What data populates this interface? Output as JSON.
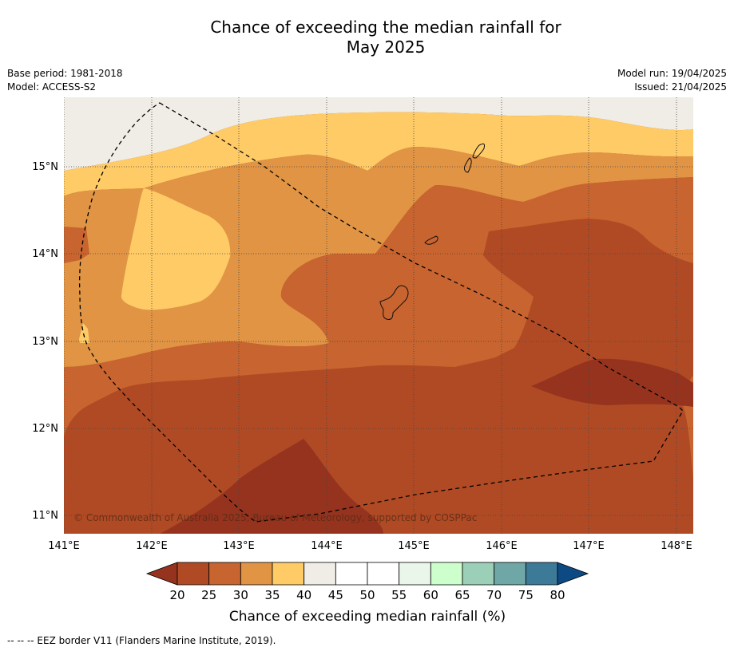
{
  "title": {
    "line1": "Chance of exceeding the median rainfall for",
    "line2": "May 2025"
  },
  "meta": {
    "base_period": "Base period: 1981-2018",
    "model": "Model: ACCESS-S2",
    "model_run": "Model run: 19/04/2025",
    "issued": "Issued: 21/04/2025"
  },
  "map": {
    "lon_labels": [
      "141°E",
      "142°E",
      "143°E",
      "144°E",
      "145°E",
      "146°E",
      "147°E",
      "148°E"
    ],
    "lat_labels": [
      "15°N",
      "14°N",
      "13°N",
      "12°N",
      "11°N"
    ],
    "copyright": "© Commonwealth of Australia 2025, Bureau of Meteorology, supported by COSPPac",
    "lon_range": [
      141.0,
      148.2
    ],
    "lat_range": [
      10.8,
      15.8
    ],
    "fill_colors": {
      "20-25": "#b04a24",
      "25-30": "#c8642f",
      "30-35": "#e09444",
      "35-40": "#fecb66",
      "40-45": "#f0ece6",
      "below-20": "#96331e"
    }
  },
  "legend": {
    "title": "Chance of exceeding median rainfall (%)",
    "ticks": [
      "20",
      "25",
      "30",
      "35",
      "40",
      "45",
      "50",
      "55",
      "60",
      "65",
      "70",
      "75",
      "80"
    ],
    "colors": [
      "#b04a24",
      "#c8642f",
      "#e09444",
      "#fecb66",
      "#f0ece6",
      "#ffffff",
      "#ffffff",
      "#eaf6ea",
      "#ccffcc",
      "#9ccfb7",
      "#6fa7a6",
      "#3d7a98"
    ],
    "low_extension_color": "#96331e",
    "high_extension_color": "#0d4a84"
  },
  "footnote": "--  --  -- EEZ border V11 (Flanders Marine Institute, 2019)."
}
